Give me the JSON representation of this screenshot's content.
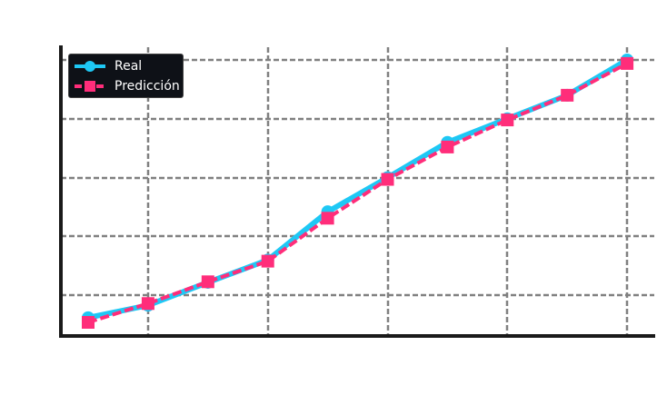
{
  "chart_data": {
    "type": "line",
    "title": "",
    "xlabel": "",
    "ylabel": "",
    "x": [
      1,
      2,
      3,
      4,
      5,
      6,
      7,
      8,
      9,
      10
    ],
    "series": [
      {
        "name": "Real",
        "color": "#1ec8f5",
        "marker": "circle",
        "linestyle": "solid",
        "values": [
          0.62,
          0.83,
          1.22,
          1.6,
          2.42,
          3.0,
          3.6,
          4.0,
          4.4,
          5.0
        ]
      },
      {
        "name": "Predicción",
        "color": "#ff2d7a",
        "marker": "square",
        "linestyle": "dashed",
        "values": [
          0.54,
          0.86,
          1.23,
          1.58,
          2.31,
          2.97,
          3.52,
          3.98,
          4.4,
          4.94
        ]
      }
    ],
    "grid": true,
    "legend_position": "upper left",
    "xlim": [
      0.55,
      10.5
    ],
    "ylim": [
      0.3,
      5.2
    ]
  },
  "legend": {
    "items": [
      {
        "label": "Real"
      },
      {
        "label": "Predicción"
      }
    ]
  }
}
